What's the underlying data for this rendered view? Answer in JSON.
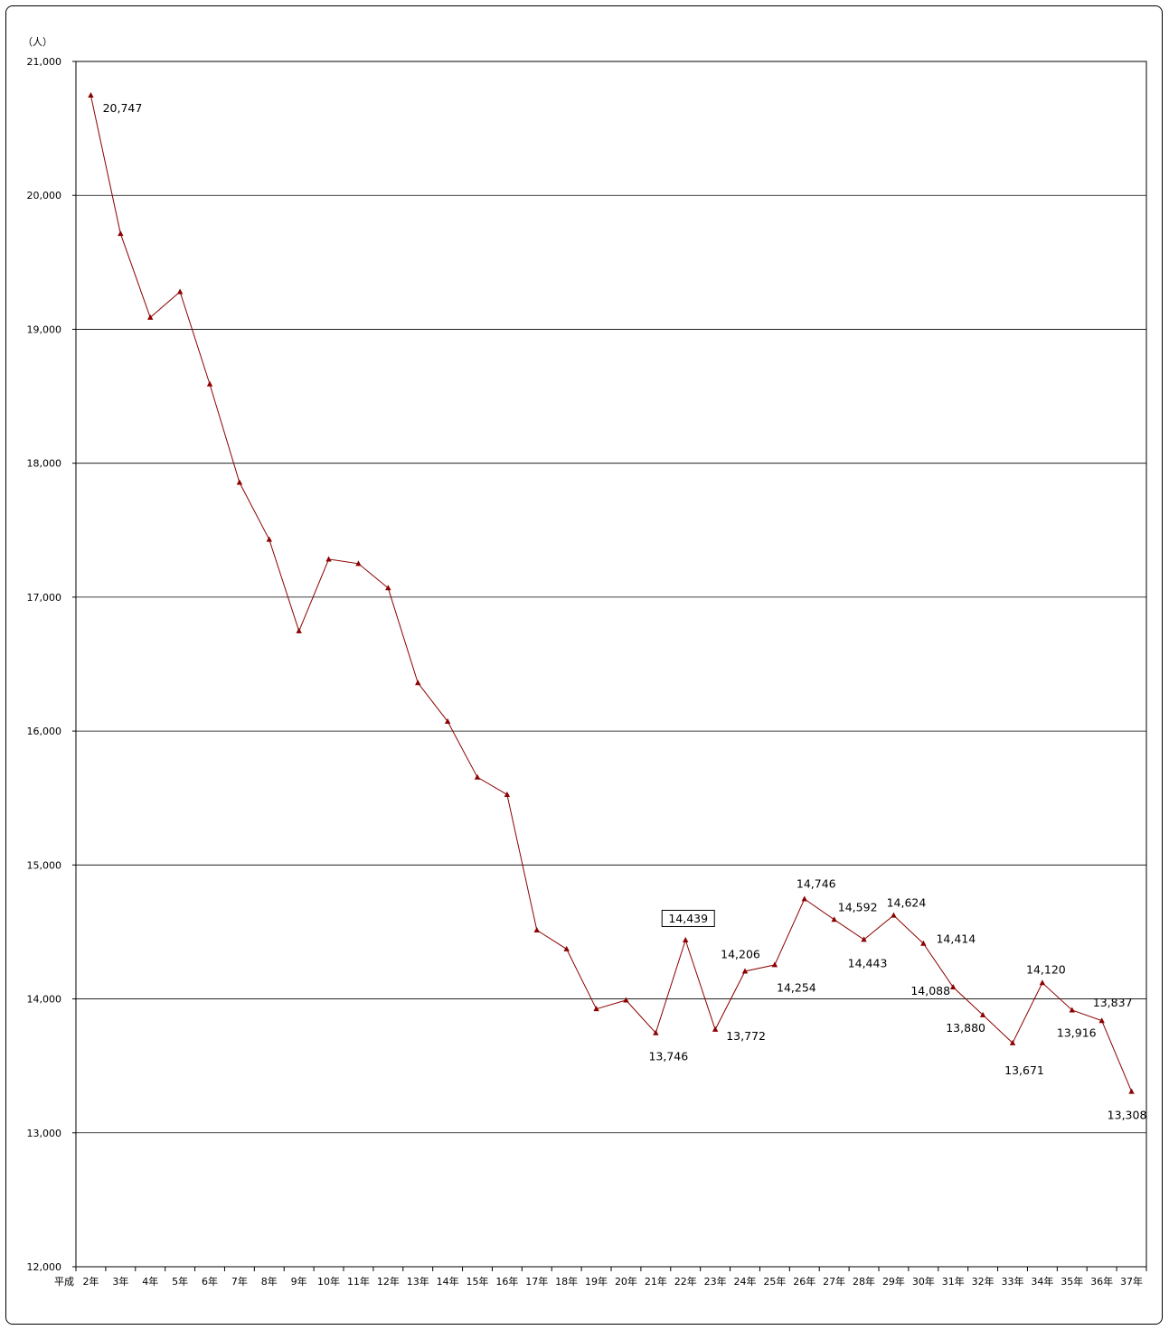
{
  "chart_data": {
    "type": "line",
    "unit_label": "（人）",
    "x_prefix_label": "平成",
    "categories": [
      "2年",
      "3年",
      "4年",
      "5年",
      "6年",
      "7年",
      "8年",
      "9年",
      "10年",
      "11年",
      "12年",
      "13年",
      "14年",
      "15年",
      "16年",
      "17年",
      "18年",
      "19年",
      "20年",
      "21年",
      "22年",
      "23年",
      "24年",
      "25年",
      "26年",
      "27年",
      "28年",
      "29年",
      "30年",
      "31年",
      "32年",
      "33年",
      "34年",
      "35年",
      "36年",
      "37年"
    ],
    "series": [
      {
        "values": [
          20747,
          19714,
          19088,
          19280,
          18591,
          17856,
          17430,
          16747,
          17283,
          17250,
          17068,
          16360,
          16072,
          15655,
          15525,
          14513,
          14372,
          13925,
          13990,
          13746,
          14439,
          13772,
          14206,
          14254,
          14746,
          14592,
          14443,
          14624,
          14414,
          14088,
          13880,
          13671,
          14120,
          13916,
          13837,
          13308
        ],
        "color": "#8b0000"
      }
    ],
    "ylim": [
      12000,
      21000
    ],
    "yticks": [
      12000,
      13000,
      14000,
      15000,
      16000,
      17000,
      18000,
      19000,
      20000,
      21000
    ],
    "ytick_labels": [
      "12,000",
      "13,000",
      "14,000",
      "15,000",
      "16,000",
      "17,000",
      "18,000",
      "19,000",
      "20,000",
      "21,000"
    ],
    "grid": true,
    "data_labels": [
      {
        "index": 0,
        "text": "20,747",
        "boxed": false
      },
      {
        "index": 19,
        "text": "13,746",
        "boxed": false
      },
      {
        "index": 20,
        "text": "14,439",
        "boxed": true
      },
      {
        "index": 21,
        "text": "13,772",
        "boxed": false
      },
      {
        "index": 22,
        "text": "14,206",
        "boxed": false
      },
      {
        "index": 23,
        "text": "14,254",
        "boxed": false
      },
      {
        "index": 24,
        "text": "14,746",
        "boxed": false
      },
      {
        "index": 25,
        "text": "14,592",
        "boxed": false
      },
      {
        "index": 26,
        "text": "14,443",
        "boxed": false
      },
      {
        "index": 27,
        "text": "14,624",
        "boxed": false
      },
      {
        "index": 28,
        "text": "14,414",
        "boxed": false
      },
      {
        "index": 29,
        "text": "14,088",
        "boxed": false
      },
      {
        "index": 30,
        "text": "13,880",
        "boxed": false
      },
      {
        "index": 31,
        "text": "13,671",
        "boxed": false
      },
      {
        "index": 32,
        "text": "14,120",
        "boxed": false
      },
      {
        "index": 33,
        "text": "13,916",
        "boxed": false
      },
      {
        "index": 34,
        "text": "13,837",
        "boxed": false
      },
      {
        "index": 35,
        "text": "13,308",
        "boxed": false
      }
    ]
  }
}
